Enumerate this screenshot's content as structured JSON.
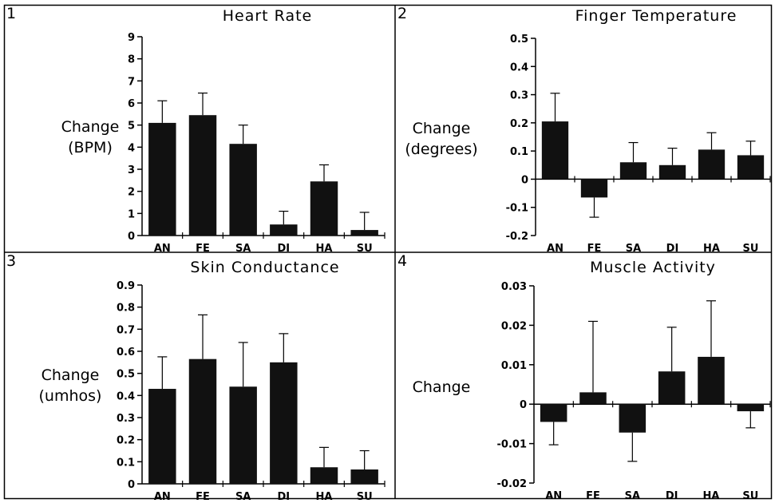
{
  "colors": {
    "bar": "#111111",
    "axis": "#000000",
    "frame": "#000000",
    "background": "#ffffff"
  },
  "chart_data": [
    {
      "type": "bar",
      "panel_number": "1",
      "title": "Heart Rate",
      "ylabel_lines": [
        "Change",
        "(BPM)"
      ],
      "categories": [
        "AN",
        "FE",
        "SA",
        "DI",
        "HA",
        "SU"
      ],
      "values": [
        5.1,
        5.45,
        4.15,
        0.5,
        2.45,
        0.25
      ],
      "error_upper": [
        6.1,
        6.45,
        5.0,
        1.1,
        3.2,
        1.05
      ],
      "ylim": [
        0,
        9
      ],
      "yticks": [
        "0",
        "1",
        "2",
        "3",
        "4",
        "5",
        "6",
        "7",
        "8",
        "9"
      ],
      "grid": false
    },
    {
      "type": "bar",
      "panel_number": "2",
      "title": "Finger Temperature",
      "ylabel_lines": [
        "Change",
        "(degrees)"
      ],
      "categories": [
        "AN",
        "FE",
        "SA",
        "DI",
        "HA",
        "SU"
      ],
      "values": [
        0.205,
        -0.065,
        0.06,
        0.05,
        0.105,
        0.085
      ],
      "error_upper": [
        0.305,
        -0.135,
        0.13,
        0.11,
        0.165,
        0.135
      ],
      "ylim": [
        -0.2,
        0.5
      ],
      "yticks": [
        "-0.2",
        "-0.1",
        "0",
        "0.1",
        "0.2",
        "0.3",
        "0.4",
        "0.5"
      ],
      "grid": false
    },
    {
      "type": "bar",
      "panel_number": "3",
      "title": "Skin Conductance",
      "ylabel_lines": [
        "Change",
        "(umhos)"
      ],
      "categories": [
        "AN",
        "FE",
        "SA",
        "DI",
        "HA",
        "SU"
      ],
      "values": [
        0.43,
        0.565,
        0.44,
        0.55,
        0.075,
        0.065
      ],
      "error_upper": [
        0.575,
        0.765,
        0.64,
        0.68,
        0.165,
        0.15
      ],
      "ylim": [
        0,
        0.9
      ],
      "yticks": [
        "0",
        "0.1",
        "0.2",
        "0.3",
        "0.4",
        "0.5",
        "0.6",
        "0.7",
        "0.8",
        "0.9"
      ],
      "grid": false
    },
    {
      "type": "bar",
      "panel_number": "4",
      "title": "Muscle Activity",
      "ylabel_lines": [
        "Change"
      ],
      "categories": [
        "AN",
        "FE",
        "SA",
        "DI",
        "HA",
        "SU"
      ],
      "values": [
        -0.0045,
        0.003,
        -0.0072,
        0.0083,
        0.012,
        -0.0018
      ],
      "error_upper": [
        -0.0103,
        0.021,
        -0.0145,
        0.0195,
        0.0262,
        -0.006
      ],
      "ylim": [
        -0.02,
        0.03
      ],
      "yticks": [
        "-0.02",
        "-0.01",
        "0",
        "0.01",
        "0.02",
        "0.03"
      ],
      "grid": false
    }
  ]
}
